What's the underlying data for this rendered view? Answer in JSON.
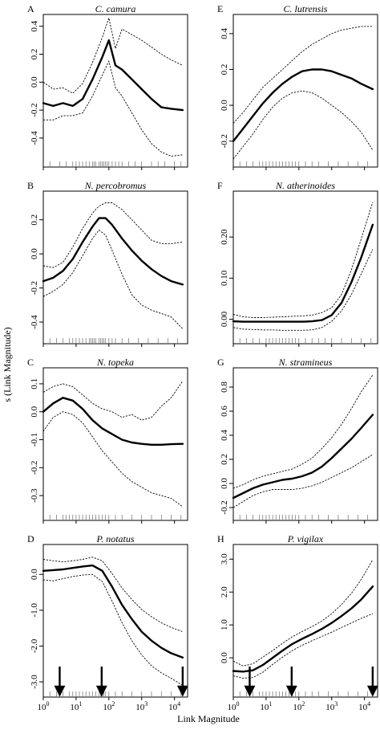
{
  "figure": {
    "y_axis_title": "s (Link Magnitude)",
    "x_axis_title": "Link Magnitude",
    "x_tick_labels": [
      {
        "base": "10",
        "exp": "0",
        "value": 0
      },
      {
        "base": "10",
        "exp": "1",
        "value": 1
      },
      {
        "base": "10",
        "exp": "2",
        "value": 2
      },
      {
        "base": "10",
        "exp": "3",
        "value": 3
      },
      {
        "base": "10",
        "exp": "4",
        "value": 4
      }
    ],
    "arrow_positions_log10": [
      0.5,
      1.78,
      4.25
    ]
  },
  "chart_data": [
    {
      "type": "line",
      "letter": "A",
      "title": "C. camura",
      "col": 0,
      "row": 0,
      "xscale": "log10",
      "xlim": [
        0,
        4.4
      ],
      "ylim": [
        -0.55,
        0.45
      ],
      "yticks": [
        -0.4,
        -0.2,
        0.0,
        0.2,
        0.4
      ],
      "ytick_labels": [
        "-0.4",
        "-0.2",
        "0.0",
        "0.2",
        "0.4"
      ],
      "x": [
        0,
        0.3,
        0.6,
        0.9,
        1.2,
        1.5,
        1.8,
        2.0,
        2.2,
        2.4,
        2.7,
        3.0,
        3.3,
        3.6,
        3.9,
        4.25
      ],
      "fit": [
        -0.15,
        -0.17,
        -0.15,
        -0.17,
        -0.12,
        0.02,
        0.18,
        0.3,
        0.12,
        0.09,
        0.02,
        -0.05,
        -0.12,
        -0.18,
        -0.19,
        -0.2
      ],
      "lower": [
        -0.27,
        -0.27,
        -0.24,
        -0.24,
        -0.22,
        -0.1,
        0.05,
        0.15,
        -0.04,
        -0.1,
        -0.22,
        -0.34,
        -0.44,
        -0.5,
        -0.53,
        -0.52
      ],
      "upper": [
        0.0,
        -0.05,
        -0.04,
        -0.08,
        -0.01,
        0.14,
        0.32,
        0.46,
        0.24,
        0.38,
        0.34,
        0.3,
        0.25,
        0.2,
        0.16,
        0.12
      ],
      "rug": [
        0.2,
        0.5,
        0.7,
        0.9,
        1.0,
        1.1,
        1.2,
        1.3,
        1.4,
        1.5,
        1.55,
        1.6,
        1.7,
        1.75,
        1.8,
        1.85,
        1.9,
        1.95,
        2.0,
        2.1,
        2.2,
        2.3,
        2.4,
        2.6,
        2.8,
        3.0,
        3.3,
        3.5,
        3.7,
        4.0,
        4.2
      ]
    },
    {
      "type": "line",
      "letter": "B",
      "title": "N. percobromus",
      "col": 0,
      "row": 1,
      "xscale": "log10",
      "xlim": [
        0,
        4.4
      ],
      "ylim": [
        -0.48,
        0.34
      ],
      "yticks": [
        -0.4,
        -0.2,
        0.0,
        0.2
      ],
      "ytick_labels": [
        "-0.4",
        "-0.2",
        "0.0",
        "0.2"
      ],
      "x": [
        0,
        0.3,
        0.6,
        0.9,
        1.2,
        1.5,
        1.7,
        1.9,
        2.1,
        2.4,
        2.7,
        3.0,
        3.3,
        3.6,
        3.9,
        4.25
      ],
      "fit": [
        -0.16,
        -0.14,
        -0.1,
        -0.03,
        0.07,
        0.16,
        0.21,
        0.21,
        0.17,
        0.09,
        0.02,
        -0.04,
        -0.09,
        -0.13,
        -0.16,
        -0.18
      ],
      "lower": [
        -0.25,
        -0.22,
        -0.18,
        -0.11,
        -0.01,
        0.09,
        0.14,
        0.11,
        0.02,
        -0.12,
        -0.24,
        -0.3,
        -0.33,
        -0.35,
        -0.37,
        -0.44
      ],
      "upper": [
        -0.07,
        -0.08,
        -0.05,
        0.04,
        0.15,
        0.24,
        0.28,
        0.3,
        0.3,
        0.26,
        0.2,
        0.14,
        0.08,
        0.06,
        0.06,
        0.07
      ],
      "rug": [
        0.2,
        0.4,
        0.6,
        0.8,
        0.9,
        1.0,
        1.1,
        1.2,
        1.3,
        1.4,
        1.45,
        1.5,
        1.55,
        1.6,
        1.7,
        1.75,
        1.8,
        1.85,
        1.9,
        2.0,
        2.1,
        2.2,
        2.4,
        2.6,
        2.9,
        3.2,
        3.5,
        3.8,
        4.1
      ]
    },
    {
      "type": "line",
      "letter": "C",
      "title": "N. topeka",
      "col": 0,
      "row": 2,
      "xscale": "log10",
      "xlim": [
        0,
        4.4
      ],
      "ylim": [
        -0.36,
        0.14
      ],
      "yticks": [
        -0.3,
        -0.2,
        -0.1,
        0.0,
        0.1
      ],
      "ytick_labels": [
        "-0.3",
        "-0.2",
        "-0.1",
        "0.0",
        "0.1"
      ],
      "x": [
        0,
        0.3,
        0.6,
        0.9,
        1.2,
        1.5,
        1.8,
        2.1,
        2.4,
        2.7,
        3.0,
        3.3,
        3.6,
        3.9,
        4.25
      ],
      "fit": [
        0.0,
        0.03,
        0.05,
        0.04,
        0.01,
        -0.03,
        -0.06,
        -0.08,
        -0.1,
        -0.11,
        -0.115,
        -0.118,
        -0.118,
        -0.116,
        -0.115
      ],
      "lower": [
        -0.07,
        -0.02,
        0.0,
        -0.01,
        -0.04,
        -0.09,
        -0.14,
        -0.18,
        -0.22,
        -0.25,
        -0.27,
        -0.29,
        -0.3,
        -0.31,
        -0.34
      ],
      "upper": [
        0.07,
        0.09,
        0.1,
        0.09,
        0.06,
        0.03,
        0.01,
        0.0,
        -0.02,
        -0.01,
        -0.03,
        -0.02,
        0.02,
        0.05,
        0.11
      ],
      "rug": [
        0.2,
        0.4,
        0.6,
        0.7,
        0.8,
        0.9,
        1.0,
        1.1,
        1.2,
        1.3,
        1.4,
        1.5,
        1.6,
        1.7,
        1.8,
        1.9,
        2.0,
        2.2,
        2.4,
        2.7,
        3.0,
        3.3,
        3.6,
        3.9,
        4.2
      ]
    },
    {
      "type": "line",
      "letter": "D",
      "title": "P. notatus",
      "col": 0,
      "row": 3,
      "xscale": "log10",
      "xlim": [
        0,
        4.4
      ],
      "ylim": [
        -3.2,
        0.7
      ],
      "yticks": [
        -3.0,
        -2.0,
        -1.0,
        0.0
      ],
      "ytick_labels": [
        "-3.0",
        "-2.0",
        "-1.0",
        "0.0"
      ],
      "x": [
        0,
        0.3,
        0.6,
        0.9,
        1.2,
        1.5,
        1.8,
        2.1,
        2.4,
        2.7,
        3.0,
        3.3,
        3.6,
        3.9,
        4.25
      ],
      "fit": [
        0.1,
        0.12,
        0.14,
        0.18,
        0.22,
        0.25,
        0.1,
        -0.35,
        -0.85,
        -1.25,
        -1.6,
        -1.85,
        -2.05,
        -2.2,
        -2.32
      ],
      "lower": [
        -0.15,
        -0.18,
        -0.12,
        -0.06,
        -0.02,
        0.0,
        -0.2,
        -0.75,
        -1.35,
        -1.85,
        -2.25,
        -2.55,
        -2.75,
        -2.9,
        -3.1
      ],
      "upper": [
        0.42,
        0.38,
        0.35,
        0.38,
        0.42,
        0.48,
        0.38,
        0.02,
        -0.38,
        -0.7,
        -0.98,
        -1.18,
        -1.35,
        -1.48,
        -1.6
      ],
      "rug": [
        0.2,
        0.4,
        0.6,
        0.8,
        0.9,
        1.0,
        1.1,
        1.2,
        1.3,
        1.4,
        1.5,
        1.6,
        1.7,
        1.75,
        1.8,
        1.85,
        1.9,
        2.0,
        2.2,
        2.4,
        2.7,
        3.0,
        3.3,
        3.6,
        3.9,
        4.2
      ]
    },
    {
      "type": "line",
      "letter": "E",
      "title": "C. lutrensis",
      "col": 1,
      "row": 0,
      "xscale": "log10",
      "xlim": [
        0,
        4.4
      ],
      "ylim": [
        -0.3,
        0.48
      ],
      "yticks": [
        -0.2,
        0.0,
        0.2,
        0.4
      ],
      "ytick_labels": [
        "-0.2",
        "0.0",
        "0.2",
        "0.4"
      ],
      "x": [
        0,
        0.3,
        0.6,
        0.9,
        1.2,
        1.5,
        1.8,
        2.1,
        2.4,
        2.7,
        3.0,
        3.3,
        3.6,
        3.9,
        4.25
      ],
      "fit": [
        -0.2,
        -0.13,
        -0.06,
        0.01,
        0.07,
        0.12,
        0.16,
        0.19,
        0.2,
        0.2,
        0.19,
        0.17,
        0.15,
        0.12,
        0.09
      ],
      "lower": [
        -0.3,
        -0.23,
        -0.16,
        -0.08,
        -0.01,
        0.04,
        0.07,
        0.08,
        0.07,
        0.04,
        0.0,
        -0.04,
        -0.09,
        -0.15,
        -0.25
      ],
      "upper": [
        -0.1,
        -0.04,
        0.03,
        0.1,
        0.15,
        0.2,
        0.25,
        0.3,
        0.34,
        0.37,
        0.4,
        0.42,
        0.43,
        0.44,
        0.44
      ],
      "rug": [
        0.2,
        0.4,
        0.6,
        0.8,
        0.9,
        1.0,
        1.1,
        1.2,
        1.3,
        1.4,
        1.5,
        1.6,
        1.7,
        1.8,
        1.9,
        2.0,
        2.2,
        2.4,
        2.6,
        2.9,
        3.2,
        3.5,
        3.8,
        4.1
      ]
    },
    {
      "type": "line",
      "letter": "F",
      "title": "N. atherinoides",
      "col": 1,
      "row": 1,
      "xscale": "log10",
      "xlim": [
        0,
        4.4
      ],
      "ylim": [
        -0.04,
        0.3
      ],
      "yticks": [
        0.0,
        0.1,
        0.2
      ],
      "ytick_labels": [
        "0.00",
        "0.10",
        "0.20"
      ],
      "x": [
        0,
        0.3,
        0.6,
        0.9,
        1.2,
        1.5,
        1.8,
        2.1,
        2.4,
        2.7,
        3.0,
        3.3,
        3.6,
        3.9,
        4.25
      ],
      "fit": [
        -0.005,
        -0.006,
        -0.006,
        -0.006,
        -0.006,
        -0.006,
        -0.006,
        -0.006,
        -0.005,
        -0.002,
        0.01,
        0.04,
        0.09,
        0.15,
        0.23
      ],
      "lower": [
        -0.02,
        -0.024,
        -0.025,
        -0.026,
        -0.026,
        -0.027,
        -0.027,
        -0.027,
        -0.026,
        -0.02,
        -0.005,
        0.02,
        0.06,
        0.11,
        0.17
      ],
      "upper": [
        0.012,
        0.006,
        0.004,
        0.004,
        0.005,
        0.006,
        0.007,
        0.008,
        0.01,
        0.016,
        0.028,
        0.06,
        0.12,
        0.195,
        0.285
      ],
      "rug": [
        0.2,
        0.4,
        0.6,
        0.8,
        1.0,
        1.1,
        1.2,
        1.3,
        1.4,
        1.5,
        1.6,
        1.7,
        1.8,
        1.9,
        2.0,
        2.2,
        2.4,
        2.6,
        2.8,
        3.0,
        3.3,
        3.6,
        3.9,
        4.2
      ]
    },
    {
      "type": "line",
      "letter": "G",
      "title": "N. stramineus",
      "col": 1,
      "row": 2,
      "xscale": "log10",
      "xlim": [
        0,
        4.4
      ],
      "ylim": [
        -0.24,
        0.92
      ],
      "yticks": [
        -0.2,
        0.0,
        0.2,
        0.4,
        0.6,
        0.8
      ],
      "ytick_labels": [
        "-0.2",
        "0.0",
        "0.2",
        "0.4",
        "0.6",
        "0.8"
      ],
      "x": [
        0,
        0.3,
        0.6,
        0.9,
        1.2,
        1.5,
        1.8,
        2.1,
        2.4,
        2.7,
        3.0,
        3.3,
        3.6,
        3.9,
        4.25
      ],
      "fit": [
        -0.12,
        -0.08,
        -0.04,
        -0.01,
        0.01,
        0.03,
        0.04,
        0.06,
        0.09,
        0.14,
        0.21,
        0.29,
        0.37,
        0.46,
        0.57
      ],
      "lower": [
        -0.2,
        -0.15,
        -0.1,
        -0.07,
        -0.05,
        -0.05,
        -0.05,
        -0.04,
        -0.02,
        0.01,
        0.05,
        0.09,
        0.13,
        0.18,
        0.24
      ],
      "upper": [
        -0.04,
        -0.01,
        0.03,
        0.06,
        0.08,
        0.1,
        0.12,
        0.16,
        0.21,
        0.29,
        0.38,
        0.49,
        0.62,
        0.76,
        0.9
      ],
      "rug": [
        0.2,
        0.4,
        0.6,
        0.8,
        0.9,
        1.0,
        1.1,
        1.2,
        1.3,
        1.4,
        1.5,
        1.6,
        1.7,
        1.8,
        1.9,
        2.0,
        2.2,
        2.4,
        2.6,
        2.9,
        3.2,
        3.5,
        3.8,
        4.1
      ]
    },
    {
      "type": "line",
      "letter": "H",
      "title": "P. vigilax",
      "col": 1,
      "row": 3,
      "xscale": "log10",
      "xlim": [
        0,
        4.4
      ],
      "ylim": [
        -0.95,
        3.3
      ],
      "yticks": [
        0.0,
        1.0,
        2.0,
        3.0
      ],
      "ytick_labels": [
        "0.0",
        "1.0",
        "2.0",
        "3.0"
      ],
      "x": [
        0,
        0.3,
        0.6,
        0.9,
        1.2,
        1.5,
        1.8,
        2.1,
        2.4,
        2.7,
        3.0,
        3.3,
        3.6,
        3.9,
        4.25
      ],
      "fit": [
        -0.4,
        -0.42,
        -0.38,
        -0.22,
        0.0,
        0.22,
        0.42,
        0.58,
        0.72,
        0.88,
        1.06,
        1.27,
        1.5,
        1.77,
        2.17
      ],
      "lower": [
        -0.55,
        -0.62,
        -0.6,
        -0.44,
        -0.2,
        0.02,
        0.22,
        0.38,
        0.52,
        0.65,
        0.78,
        0.92,
        1.06,
        1.2,
        1.34
      ],
      "upper": [
        -0.1,
        -0.25,
        -0.18,
        0.02,
        0.22,
        0.44,
        0.64,
        0.8,
        0.95,
        1.12,
        1.34,
        1.62,
        1.96,
        2.38,
        2.98
      ],
      "rug": [
        0.2,
        0.4,
        0.6,
        0.8,
        0.9,
        1.0,
        1.1,
        1.2,
        1.3,
        1.4,
        1.5,
        1.6,
        1.7,
        1.8,
        1.9,
        2.0,
        2.2,
        2.4,
        2.6,
        2.9,
        3.2,
        3.5,
        3.8,
        4.1
      ]
    }
  ]
}
